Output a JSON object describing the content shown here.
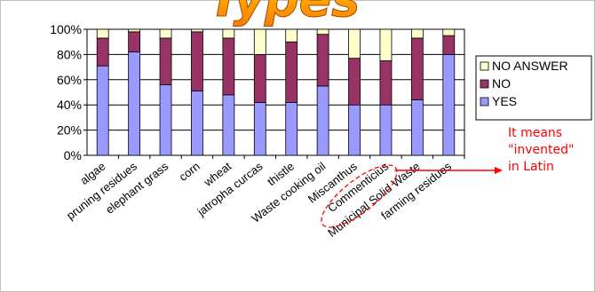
{
  "chart_data": {
    "type": "bar",
    "stacked": true,
    "title": "Types",
    "categories": [
      "algae",
      "pruning residues",
      "elephant grass",
      "corn",
      "wheat",
      "jatropha curcas",
      "thistle",
      "Waste cooking oil",
      "Miscanthus",
      "Commenticius",
      "Municipal Solid Waste",
      "farming residues"
    ],
    "series": [
      {
        "name": "YES",
        "color": "#9999ff",
        "values": [
          71,
          82,
          56,
          51,
          48,
          42,
          42,
          55,
          40,
          40,
          44,
          80
        ]
      },
      {
        "name": "NO",
        "color": "#993366",
        "values": [
          22,
          16,
          37,
          47,
          45,
          38,
          48,
          41,
          37,
          35,
          49,
          15
        ]
      },
      {
        "name": "NO ANSWER",
        "color": "#ffffcc",
        "values": [
          7,
          2,
          7,
          2,
          7,
          20,
          10,
          4,
          23,
          25,
          7,
          5
        ]
      }
    ],
    "ylim": [
      0,
      100
    ],
    "y_ticks": [
      "0%",
      "20%",
      "40%",
      "60%",
      "80%",
      "100%"
    ],
    "grid": true,
    "legend": "right",
    "annotation": {
      "target": "Commenticius",
      "lines": [
        "It means",
        "\"invented\"",
        "in Latin"
      ],
      "color": "#ff0000"
    }
  }
}
